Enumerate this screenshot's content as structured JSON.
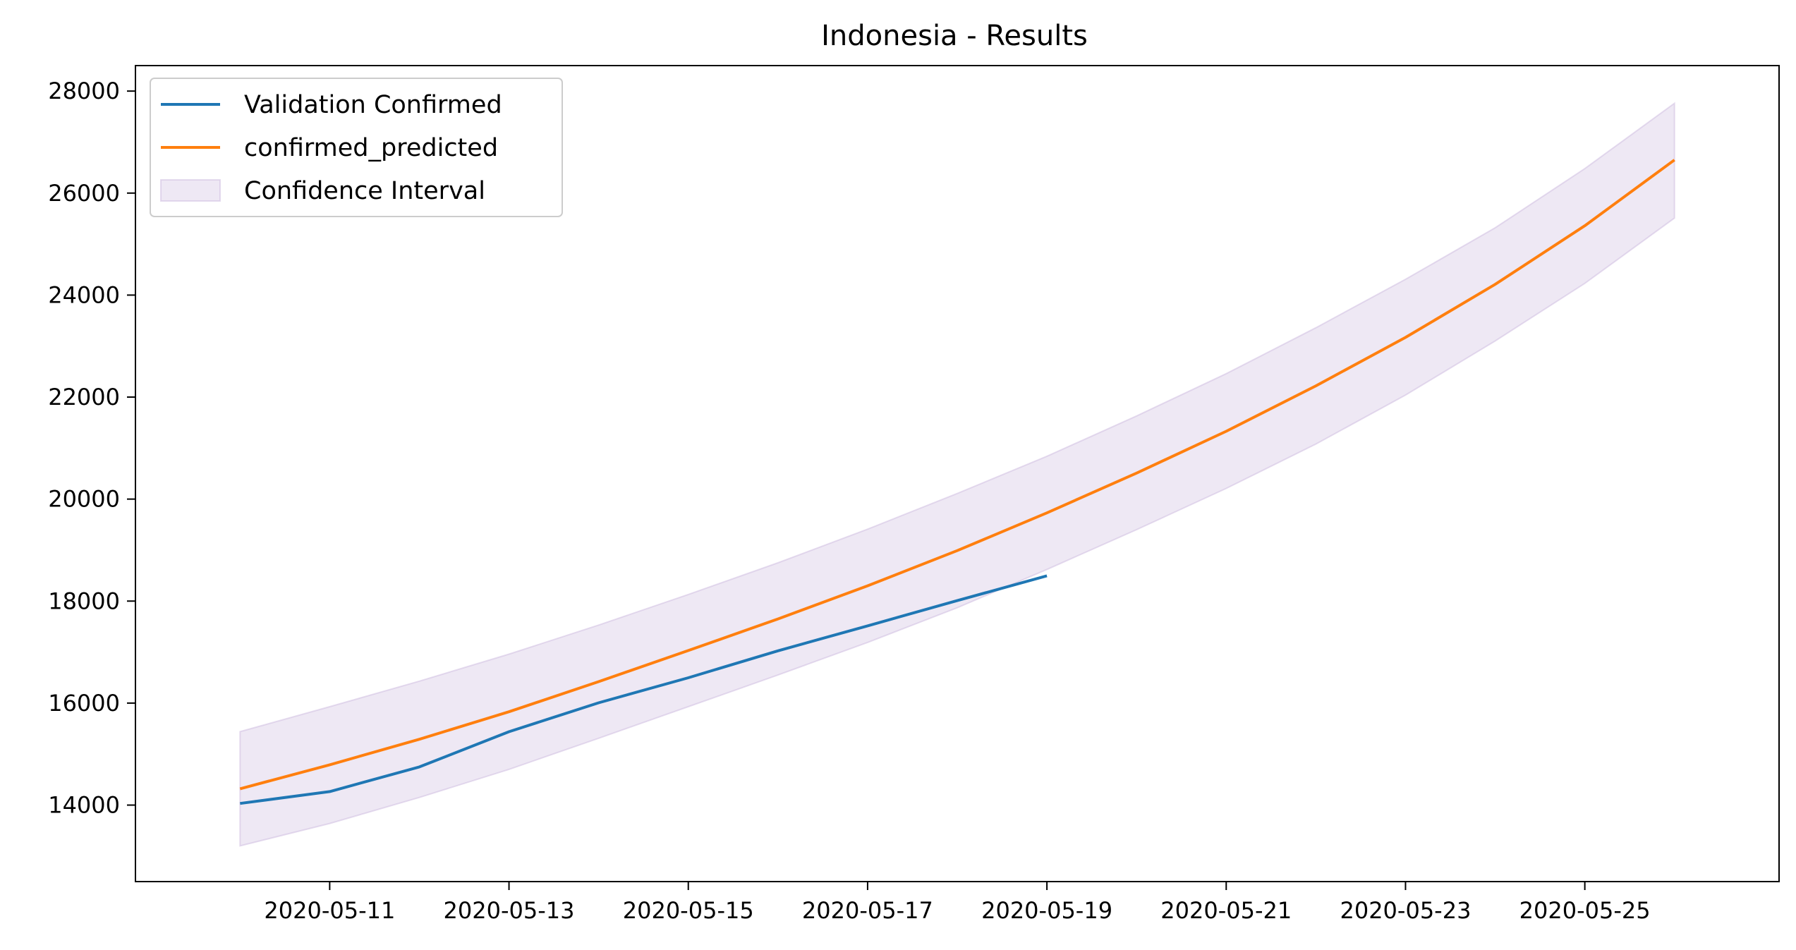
{
  "chart_data": {
    "type": "line",
    "title": "Indonesia - Results",
    "xlabel": "",
    "ylabel": "",
    "x_axis_type": "date",
    "xlim": [
      "2020-05-08T20:00",
      "2020-05-27T04:00"
    ],
    "ylim": [
      12500,
      28500
    ],
    "x_ticks": [
      "2020-05-11",
      "2020-05-13",
      "2020-05-15",
      "2020-05-17",
      "2020-05-19",
      "2020-05-21",
      "2020-05-23",
      "2020-05-25"
    ],
    "y_ticks": [
      14000,
      16000,
      18000,
      20000,
      22000,
      24000,
      26000,
      28000
    ],
    "grid": false,
    "legend_position": "upper-left",
    "series": [
      {
        "name": "Validation Confirmed",
        "color": "#1f77b4",
        "x": [
          "2020-05-10",
          "2020-05-11",
          "2020-05-12",
          "2020-05-13",
          "2020-05-14",
          "2020-05-15",
          "2020-05-16",
          "2020-05-17",
          "2020-05-18",
          "2020-05-19"
        ],
        "values": [
          14032,
          14265,
          14749,
          15438,
          16006,
          16496,
          17025,
          17514,
          18010,
          18496
        ]
      },
      {
        "name": "confirmed_predicted",
        "color": "#ff7f0e",
        "x": [
          "2020-05-10",
          "2020-05-11",
          "2020-05-12",
          "2020-05-13",
          "2020-05-14",
          "2020-05-15",
          "2020-05-16",
          "2020-05-17",
          "2020-05-18",
          "2020-05-19",
          "2020-05-20",
          "2020-05-21",
          "2020-05-22",
          "2020-05-23",
          "2020-05-24",
          "2020-05-25",
          "2020-05-26"
        ],
        "values": [
          14320,
          14790,
          15290,
          15830,
          16420,
          17030,
          17650,
          18300,
          18990,
          19730,
          20510,
          21330,
          22220,
          23170,
          24210,
          25360,
          26650
        ]
      }
    ],
    "confidence_interval": {
      "name": "Confidence Interval",
      "color": "#c7b3dc",
      "x": [
        "2020-05-10",
        "2020-05-11",
        "2020-05-12",
        "2020-05-13",
        "2020-05-14",
        "2020-05-15",
        "2020-05-16",
        "2020-05-17",
        "2020-05-18",
        "2020-05-19",
        "2020-05-20",
        "2020-05-21",
        "2020-05-22",
        "2020-05-23",
        "2020-05-24",
        "2020-05-25",
        "2020-05-26"
      ],
      "lower": [
        13200,
        13640,
        14150,
        14700,
        15310,
        15930,
        16550,
        17190,
        17870,
        18620,
        19400,
        20210,
        21080,
        22040,
        23100,
        24230,
        25510
      ],
      "upper": [
        15440,
        15930,
        16430,
        16960,
        17530,
        18130,
        18750,
        19410,
        20110,
        20840,
        21630,
        22460,
        23360,
        24310,
        25320,
        26480,
        27760
      ]
    }
  }
}
